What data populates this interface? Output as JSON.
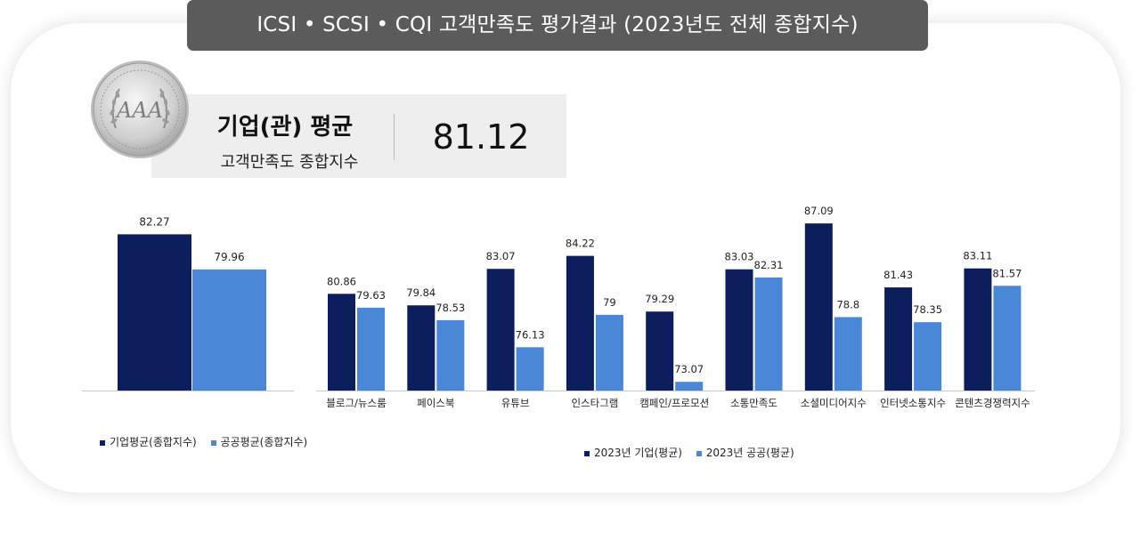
{
  "header": {
    "title": "ICSI • SCSI  • CQI 고객만족도 평가결과 (2023년도 전체 종합지수)"
  },
  "seal": {
    "monogram": "AAA"
  },
  "score": {
    "title": "기업(관) 평균",
    "subtitle": "고객만족도 종합지수",
    "value": "81.12"
  },
  "colors": {
    "corporate": "#0c1f5c",
    "public": "#4a87d6",
    "header": "#5b5b5b"
  },
  "chart_data": [
    {
      "type": "bar",
      "categories": [
        ""
      ],
      "series": [
        {
          "name": "기업평균(종합지수)",
          "values": [
            82.27
          ],
          "labels": [
            "82.27"
          ]
        },
        {
          "name": "공공평균(종합지수)",
          "values": [
            79.96
          ],
          "labels": [
            "79.96"
          ]
        }
      ],
      "legend": "bottom-left",
      "grid": false
    },
    {
      "type": "bar",
      "categories": [
        "블로그/뉴스룸",
        "페이스북",
        "유튜브",
        "인스타그램",
        "캠페인/프로모션",
        "소통만족도",
        "소셜미디어지수",
        "인터넷소통지수",
        "콘텐츠경쟁력지수"
      ],
      "series": [
        {
          "name": "2023년 기업(평균)",
          "values": [
            80.86,
            79.84,
            83.07,
            84.22,
            79.29,
            83.03,
            87.09,
            81.43,
            83.11
          ],
          "labels": [
            "80.86",
            "79.84",
            "83.07",
            "84.22",
            "79.29",
            "83.03",
            "87.09",
            "81.43",
            "83.11"
          ]
        },
        {
          "name": "2023년 공공(평균)",
          "values": [
            79.63,
            78.53,
            76.13,
            79,
            73.07,
            82.31,
            78.8,
            78.35,
            81.57
          ],
          "labels": [
            "79.63",
            "78.53",
            "76.13",
            "79",
            "73.07",
            "82.31",
            "78.8",
            "78.35",
            "81.57"
          ]
        }
      ],
      "legend": "bottom",
      "grid": false
    }
  ]
}
